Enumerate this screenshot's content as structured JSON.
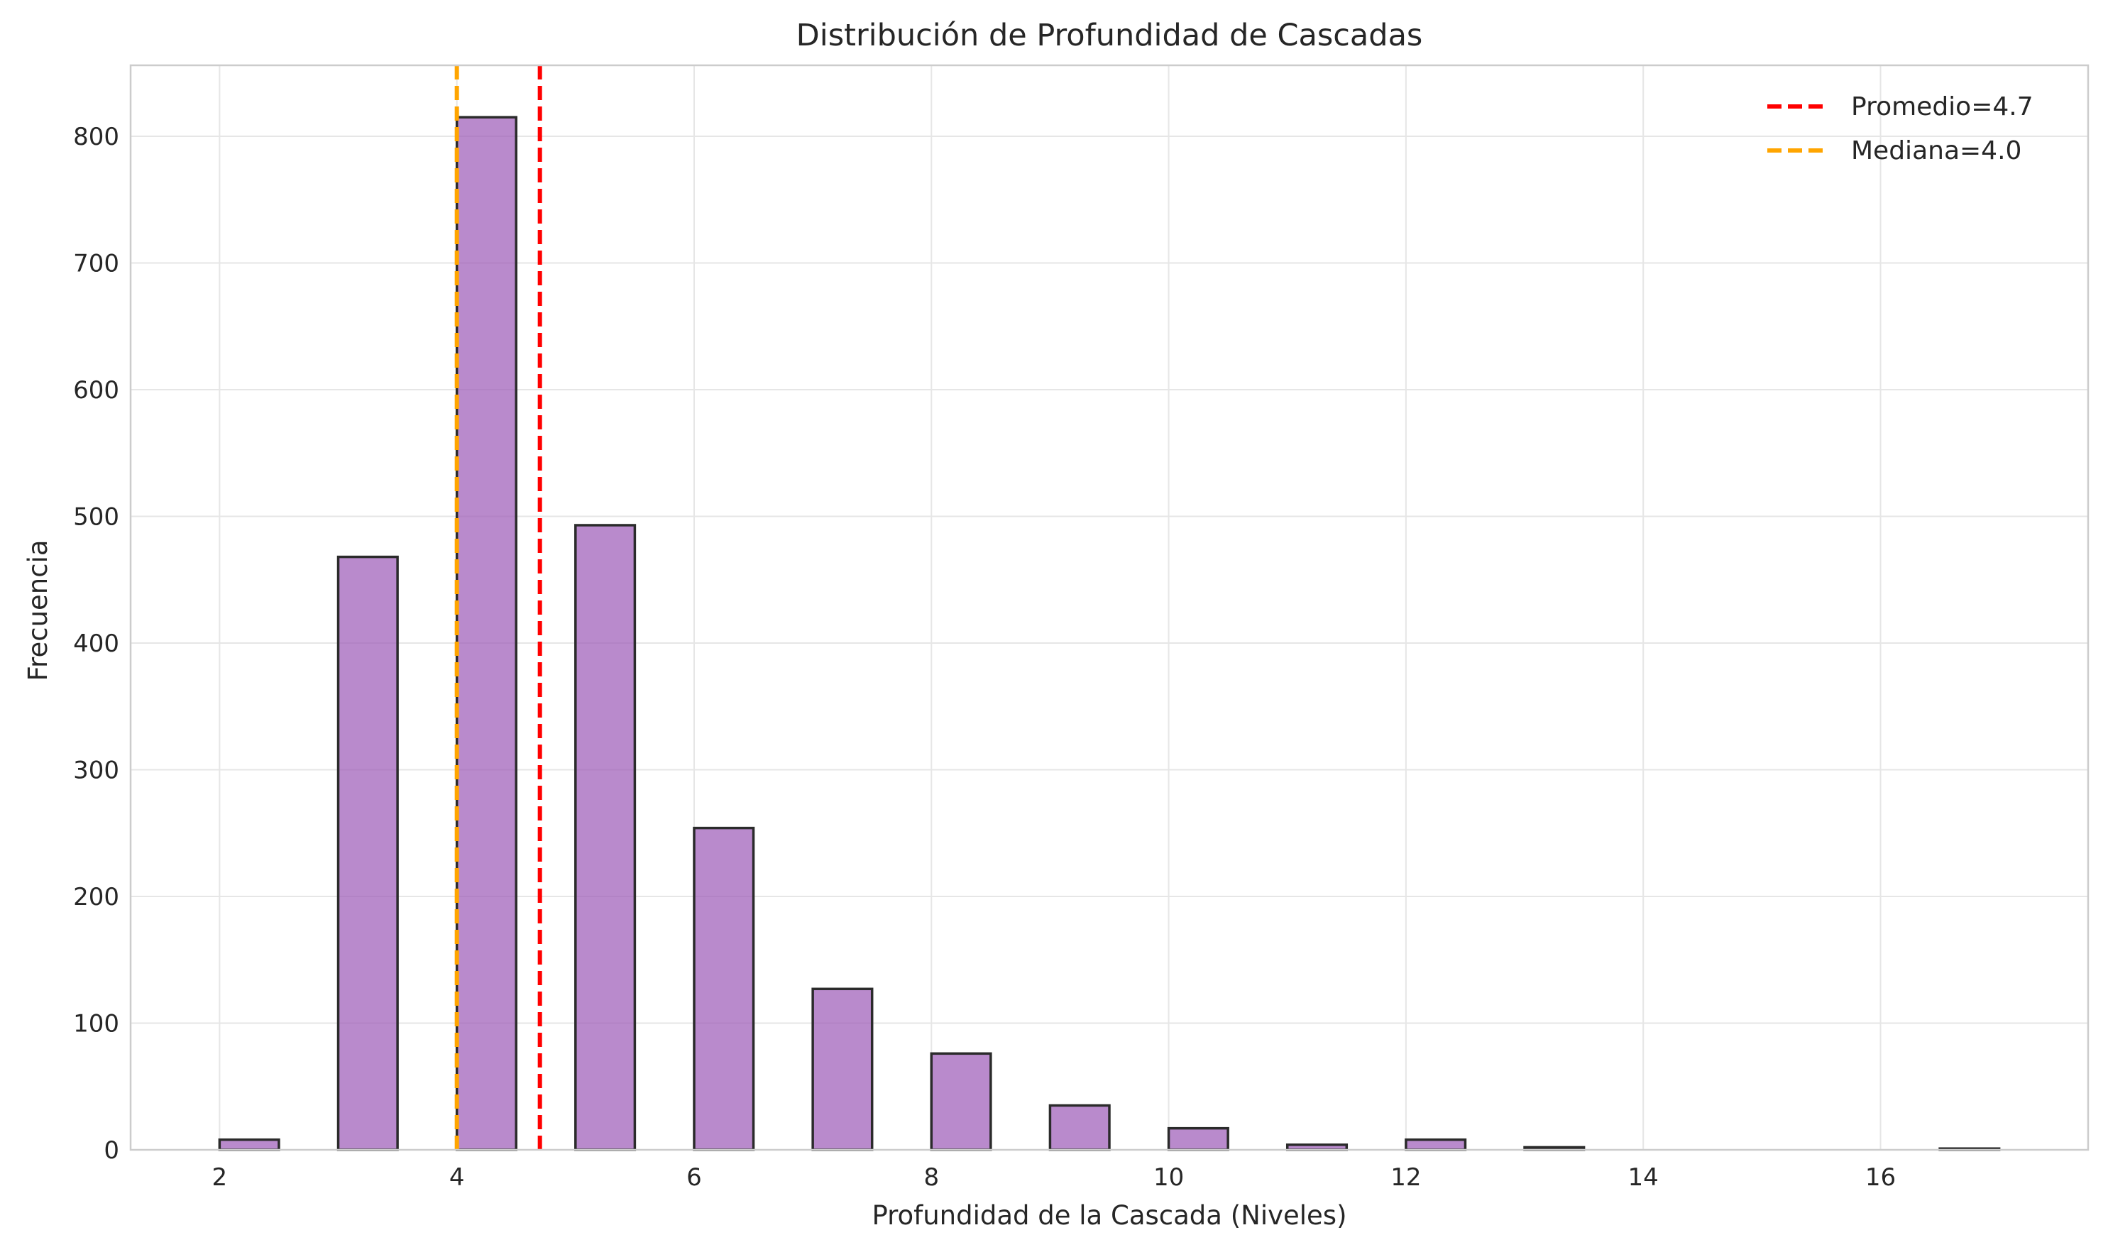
{
  "chart_data": {
    "type": "bar",
    "title": "Distribución de Profundidad de Cascadas",
    "xlabel": "Profundidad de la Cascada (Niveles)",
    "ylabel": "Frecuencia",
    "xlim": [
      1.25,
      17.75
    ],
    "ylim": [
      0,
      856
    ],
    "xticks": [
      2,
      4,
      6,
      8,
      10,
      12,
      14,
      16
    ],
    "yticks": [
      0,
      100,
      200,
      300,
      400,
      500,
      600,
      700,
      800
    ],
    "grid": true,
    "legend_position": "top-right",
    "bar_color": "#9b59b6",
    "bar_edge_color": "#2b2b2b",
    "bins": [
      {
        "start": 2.0,
        "end": 2.5,
        "count": 8
      },
      {
        "start": 3.0,
        "end": 3.5,
        "count": 468
      },
      {
        "start": 4.0,
        "end": 4.5,
        "count": 815
      },
      {
        "start": 5.0,
        "end": 5.5,
        "count": 493
      },
      {
        "start": 6.0,
        "end": 6.5,
        "count": 254
      },
      {
        "start": 7.0,
        "end": 7.5,
        "count": 127
      },
      {
        "start": 8.0,
        "end": 8.5,
        "count": 76
      },
      {
        "start": 9.0,
        "end": 9.5,
        "count": 35
      },
      {
        "start": 10.0,
        "end": 10.5,
        "count": 17
      },
      {
        "start": 11.0,
        "end": 11.5,
        "count": 4
      },
      {
        "start": 12.0,
        "end": 12.5,
        "count": 8
      },
      {
        "start": 13.0,
        "end": 13.5,
        "count": 2
      },
      {
        "start": 16.5,
        "end": 17.0,
        "count": 1
      }
    ],
    "reference_lines": [
      {
        "name": "Promedio=4.7",
        "x": 4.7,
        "color": "#ff0000"
      },
      {
        "name": "Mediana=4.0",
        "x": 4.0,
        "color": "#ffa500"
      }
    ]
  }
}
